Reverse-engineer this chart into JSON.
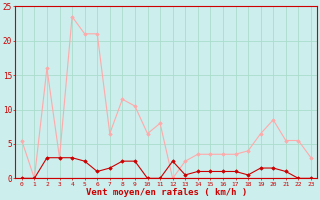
{
  "x": [
    0,
    1,
    2,
    3,
    4,
    5,
    6,
    7,
    8,
    9,
    10,
    11,
    12,
    13,
    14,
    15,
    16,
    17,
    18,
    19,
    20,
    21,
    22,
    23
  ],
  "rafales": [
    5.5,
    0.0,
    16.0,
    3.0,
    23.5,
    21.0,
    21.0,
    6.5,
    11.5,
    10.5,
    6.5,
    8.0,
    0.0,
    2.5,
    3.5,
    3.5,
    3.5,
    3.5,
    4.0,
    6.5,
    8.5,
    5.5,
    5.5,
    3.0
  ],
  "moyen": [
    0.0,
    0.0,
    3.0,
    3.0,
    3.0,
    2.5,
    1.0,
    1.5,
    2.5,
    2.5,
    0.0,
    0.0,
    2.5,
    0.5,
    1.0,
    1.0,
    1.0,
    1.0,
    0.5,
    1.5,
    1.5,
    1.0,
    0.0,
    0.0
  ],
  "color_rafales": "#ffaaaa",
  "color_moyen": "#cc0000",
  "bg_color": "#cceeed",
  "grid_color": "#aaddcc",
  "xlabel": "Vent moyen/en rafales ( km/h )",
  "xlabel_color": "#cc0000",
  "tick_color": "#cc0000",
  "ylim": [
    0,
    25
  ],
  "yticks": [
    0,
    5,
    10,
    15,
    20,
    25
  ],
  "marker": "D",
  "marker_size": 1.8,
  "line_width": 0.8,
  "spine_color": "#cc0000"
}
